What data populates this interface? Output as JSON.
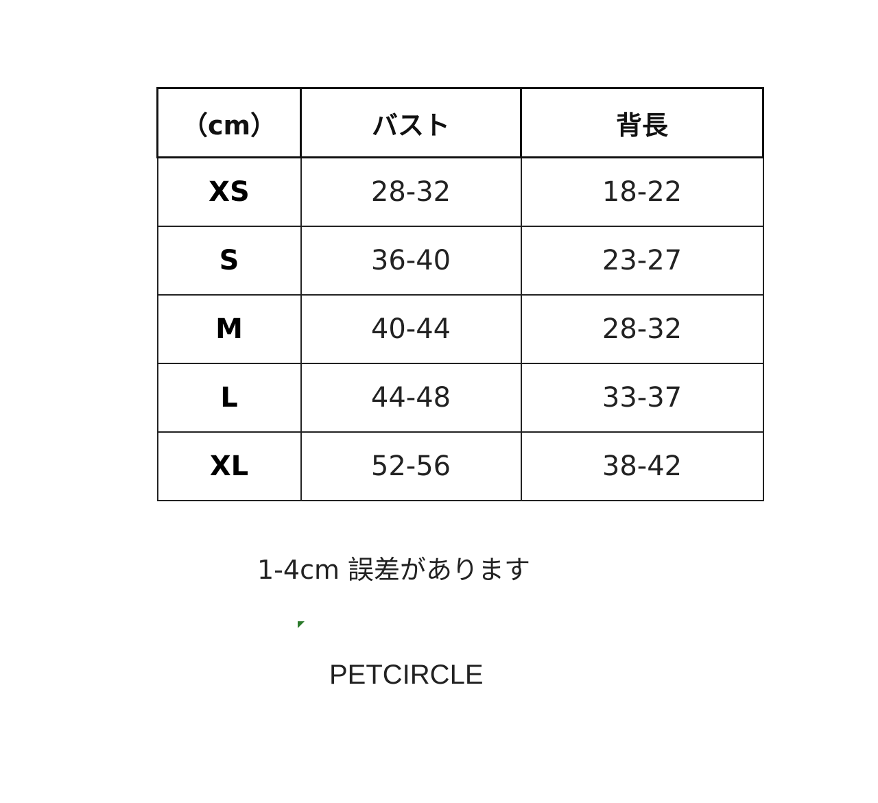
{
  "table": {
    "headers": [
      "（cm）",
      "バスト",
      "背長"
    ],
    "rows": [
      {
        "size": "XS",
        "bust": "28-32",
        "back_length": "18-22"
      },
      {
        "size": "S",
        "bust": "36-40",
        "back_length": "23-27"
      },
      {
        "size": "M",
        "bust": "40-44",
        "back_length": "28-32"
      },
      {
        "size": "L",
        "bust": "44-48",
        "back_length": "33-37"
      },
      {
        "size": "XL",
        "bust": "52-56",
        "back_length": "38-42"
      }
    ]
  },
  "note": "1-4cm 誤差があります",
  "brand": "PETCIRCLE",
  "colors": {
    "mark": "#2b7a2b"
  }
}
